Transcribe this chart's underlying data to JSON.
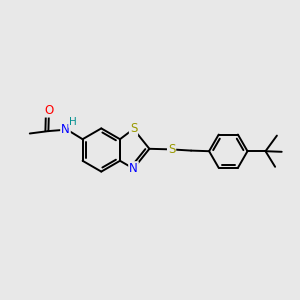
{
  "background_color": "#e8e8e8",
  "bond_color": "#000000",
  "bond_width": 1.4,
  "atom_colors": {
    "S": "#999900",
    "N": "#0000ff",
    "H": "#009090",
    "O": "#ff0000"
  },
  "font_size": 8.5,
  "figsize": [
    3.0,
    3.0
  ],
  "dpi": 100,
  "xlim": [
    0,
    10
  ],
  "ylim": [
    2,
    8
  ]
}
